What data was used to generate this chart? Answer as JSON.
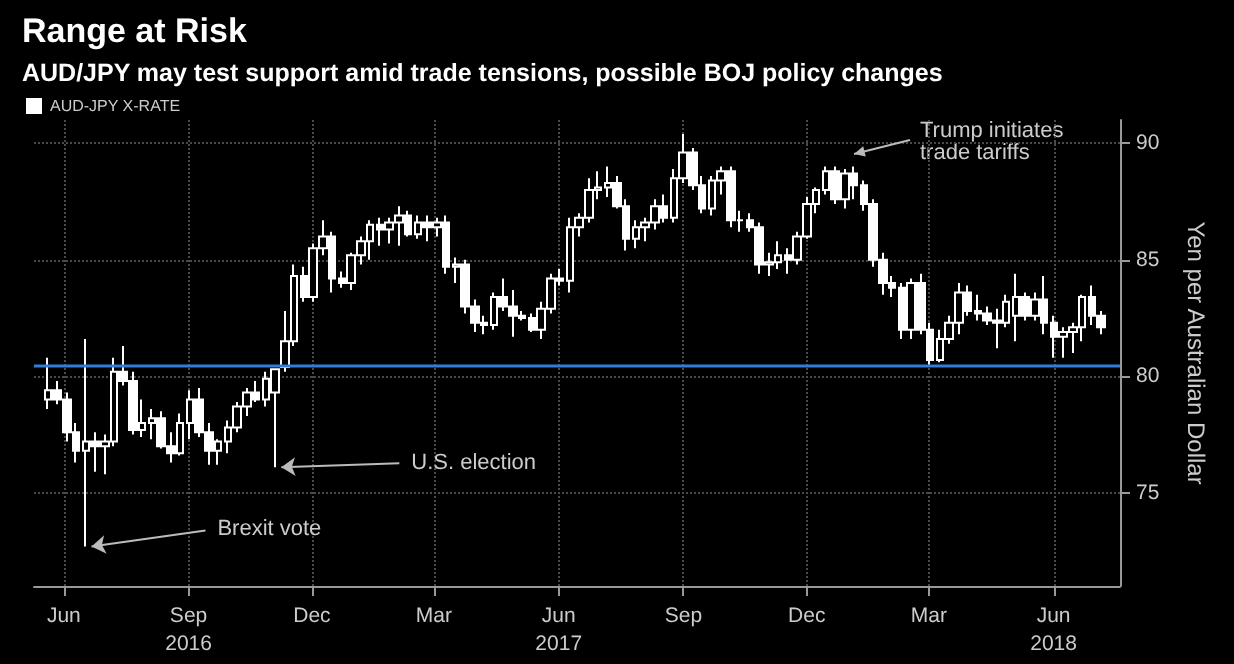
{
  "chart_data": {
    "type": "candlestick",
    "title": "Range at Risk",
    "subtitle": "AUD/JPY may test support amid trade tensions, possible BOJ policy changes",
    "ylabel": "Yen per Australian Dollar",
    "x": [
      "2016-05-20",
      "2016-05-27",
      "2016-06-03",
      "2016-06-10",
      "2016-06-17",
      "2016-06-24",
      "2016-07-01",
      "2016-07-08",
      "2016-07-15",
      "2016-07-22",
      "2016-07-29",
      "2016-08-05",
      "2016-08-12",
      "2016-08-19",
      "2016-08-26",
      "2016-09-02",
      "2016-09-09",
      "2016-09-16",
      "2016-09-23",
      "2016-09-30",
      "2016-10-07",
      "2016-10-14",
      "2016-10-21",
      "2016-10-28",
      "2016-11-04",
      "2016-11-11",
      "2016-11-18",
      "2016-11-25",
      "2016-12-02",
      "2016-12-09",
      "2016-12-16",
      "2016-12-23",
      "2016-12-30",
      "2017-01-06",
      "2017-01-13",
      "2017-01-20",
      "2017-01-27",
      "2017-02-03",
      "2017-02-10",
      "2017-02-17",
      "2017-02-24",
      "2017-03-03",
      "2017-03-10",
      "2017-03-17",
      "2017-03-24",
      "2017-03-31",
      "2017-04-07",
      "2017-04-14",
      "2017-04-21",
      "2017-04-28",
      "2017-05-05",
      "2017-05-12",
      "2017-05-19",
      "2017-05-26",
      "2017-06-02",
      "2017-06-09",
      "2017-06-16",
      "2017-06-23",
      "2017-06-30",
      "2017-07-07",
      "2017-07-14",
      "2017-07-21",
      "2017-07-28",
      "2017-08-04",
      "2017-08-11",
      "2017-08-18",
      "2017-08-25",
      "2017-09-01",
      "2017-09-08",
      "2017-09-15",
      "2017-09-22",
      "2017-09-29",
      "2017-10-06",
      "2017-10-13",
      "2017-10-20",
      "2017-10-27",
      "2017-11-03",
      "2017-11-10",
      "2017-11-17",
      "2017-11-24",
      "2017-12-01",
      "2017-12-08",
      "2017-12-15",
      "2017-12-22",
      "2017-12-29",
      "2018-01-05",
      "2018-01-12",
      "2018-01-19",
      "2018-01-26",
      "2018-02-02",
      "2018-02-09",
      "2018-02-16",
      "2018-02-23",
      "2018-03-02",
      "2018-03-09",
      "2018-03-16",
      "2018-03-23",
      "2018-03-30",
      "2018-04-06",
      "2018-04-13",
      "2018-04-20",
      "2018-04-27",
      "2018-05-04",
      "2018-05-11",
      "2018-05-18",
      "2018-05-25",
      "2018-06-01",
      "2018-06-08",
      "2018-06-15",
      "2018-06-22",
      "2018-06-29",
      "2018-07-06"
    ],
    "series": [
      {
        "name": "AUD-JPY X-RATE",
        "color": "#ffffff",
        "ohlc": [
          [
            79.0,
            80.8,
            78.6,
            79.4
          ],
          [
            79.4,
            79.8,
            78.8,
            79.0
          ],
          [
            79.0,
            79.3,
            77.2,
            77.6
          ],
          [
            77.6,
            78.0,
            76.3,
            76.8
          ],
          [
            76.8,
            81.6,
            72.7,
            77.2
          ],
          [
            77.2,
            77.6,
            75.9,
            77.0
          ],
          [
            77.0,
            77.5,
            75.8,
            77.2
          ],
          [
            77.2,
            80.8,
            77.0,
            80.2
          ],
          [
            80.2,
            81.3,
            79.6,
            79.8
          ],
          [
            79.8,
            80.2,
            77.5,
            77.7
          ],
          [
            77.7,
            79.0,
            77.4,
            78.0
          ],
          [
            78.0,
            78.6,
            77.3,
            78.2
          ],
          [
            78.2,
            78.5,
            76.9,
            77.0
          ],
          [
            77.0,
            77.6,
            76.3,
            76.7
          ],
          [
            76.7,
            78.4,
            76.6,
            78.0
          ],
          [
            78.0,
            79.4,
            77.3,
            79.0
          ],
          [
            79.0,
            79.5,
            77.4,
            77.6
          ],
          [
            77.6,
            78.0,
            76.2,
            76.8
          ],
          [
            76.8,
            77.3,
            76.2,
            77.2
          ],
          [
            77.2,
            78.1,
            76.7,
            77.8
          ],
          [
            77.8,
            78.9,
            77.6,
            78.7
          ],
          [
            78.7,
            79.5,
            78.3,
            79.3
          ],
          [
            79.3,
            79.8,
            78.9,
            79.0
          ],
          [
            79.0,
            80.2,
            78.7,
            79.9
          ],
          [
            79.3,
            80.3,
            76.1,
            80.3
          ],
          [
            80.4,
            82.8,
            80.2,
            81.5
          ],
          [
            81.5,
            84.8,
            81.3,
            84.3
          ],
          [
            84.3,
            84.7,
            83.2,
            83.4
          ],
          [
            83.4,
            85.7,
            83.2,
            85.5
          ],
          [
            85.5,
            86.7,
            85.2,
            86.0
          ],
          [
            86.0,
            86.2,
            83.6,
            84.2
          ],
          [
            84.2,
            84.5,
            83.8,
            84.0
          ],
          [
            84.0,
            85.3,
            83.7,
            85.2
          ],
          [
            85.2,
            86.0,
            84.8,
            85.8
          ],
          [
            85.8,
            86.7,
            85.0,
            86.5
          ],
          [
            86.5,
            86.8,
            85.6,
            86.3
          ],
          [
            86.3,
            86.8,
            85.7,
            86.6
          ],
          [
            86.6,
            87.3,
            85.6,
            86.9
          ],
          [
            86.9,
            87.1,
            86.0,
            86.1
          ],
          [
            86.1,
            86.9,
            85.9,
            86.6
          ],
          [
            86.6,
            86.9,
            85.8,
            86.4
          ],
          [
            86.4,
            86.8,
            86.0,
            86.6
          ],
          [
            86.6,
            86.9,
            84.4,
            84.7
          ],
          [
            84.7,
            85.1,
            84.0,
            84.8
          ],
          [
            84.8,
            85.0,
            82.7,
            83.0
          ],
          [
            83.0,
            83.3,
            81.9,
            82.3
          ],
          [
            82.3,
            82.6,
            81.8,
            82.2
          ],
          [
            82.2,
            83.6,
            82.0,
            83.4
          ],
          [
            83.4,
            84.2,
            82.8,
            83.0
          ],
          [
            83.0,
            83.7,
            81.7,
            82.6
          ],
          [
            82.6,
            82.8,
            82.4,
            82.5
          ],
          [
            82.5,
            82.7,
            81.9,
            82.0
          ],
          [
            82.0,
            83.2,
            81.6,
            82.9
          ],
          [
            82.9,
            84.4,
            82.7,
            84.2
          ],
          [
            84.2,
            84.6,
            83.9,
            84.1
          ],
          [
            84.1,
            86.8,
            83.6,
            86.4
          ],
          [
            86.4,
            87.0,
            86.0,
            86.8
          ],
          [
            86.8,
            88.5,
            86.6,
            88.0
          ],
          [
            88.0,
            88.8,
            87.6,
            88.1
          ],
          [
            88.1,
            89.0,
            87.7,
            88.3
          ],
          [
            88.3,
            88.6,
            87.2,
            87.3
          ],
          [
            87.3,
            87.6,
            85.4,
            85.9
          ],
          [
            85.9,
            86.7,
            85.5,
            86.4
          ],
          [
            86.4,
            86.8,
            85.8,
            86.6
          ],
          [
            86.6,
            87.6,
            86.3,
            87.3
          ],
          [
            87.3,
            87.8,
            86.6,
            86.8
          ],
          [
            86.8,
            88.9,
            86.6,
            88.5
          ],
          [
            88.5,
            90.4,
            88.3,
            89.6
          ],
          [
            89.6,
            89.8,
            88.0,
            88.2
          ],
          [
            88.2,
            88.6,
            87.0,
            87.2
          ],
          [
            87.2,
            88.6,
            86.9,
            88.4
          ],
          [
            88.4,
            89.0,
            87.8,
            88.8
          ],
          [
            88.8,
            89.0,
            86.4,
            86.7
          ],
          [
            86.7,
            87.1,
            86.2,
            86.7
          ],
          [
            86.7,
            87.0,
            86.2,
            86.4
          ],
          [
            86.4,
            86.6,
            84.4,
            84.8
          ],
          [
            84.8,
            85.3,
            84.3,
            84.9
          ],
          [
            84.9,
            85.8,
            84.6,
            85.2
          ],
          [
            85.2,
            85.5,
            84.4,
            85.0
          ],
          [
            85.0,
            86.2,
            84.8,
            86.0
          ],
          [
            86.0,
            87.7,
            85.9,
            87.4
          ],
          [
            87.4,
            88.1,
            87.0,
            88.0
          ],
          [
            88.0,
            89.0,
            87.8,
            88.8
          ],
          [
            88.8,
            89.0,
            87.4,
            87.6
          ],
          [
            87.6,
            88.9,
            87.2,
            88.7
          ],
          [
            88.7,
            89.0,
            87.6,
            88.2
          ],
          [
            88.2,
            88.4,
            87.1,
            87.4
          ],
          [
            87.4,
            87.6,
            84.7,
            85.0
          ],
          [
            85.0,
            85.3,
            83.5,
            84.0
          ],
          [
            84.0,
            84.3,
            83.4,
            83.8
          ],
          [
            83.8,
            84.0,
            81.6,
            82.0
          ],
          [
            82.0,
            84.2,
            81.6,
            84.0
          ],
          [
            84.0,
            84.4,
            81.8,
            82.0
          ],
          [
            82.0,
            82.3,
            80.5,
            80.7
          ],
          [
            80.7,
            82.0,
            80.6,
            81.6
          ],
          [
            81.6,
            82.6,
            81.4,
            82.3
          ],
          [
            82.3,
            84.0,
            81.8,
            83.6
          ],
          [
            83.6,
            83.9,
            82.6,
            82.8
          ],
          [
            82.8,
            83.5,
            82.4,
            82.7
          ],
          [
            82.7,
            83.0,
            82.2,
            82.4
          ],
          [
            82.4,
            82.9,
            81.2,
            82.3
          ],
          [
            82.3,
            83.5,
            82.1,
            83.2
          ],
          [
            82.6,
            84.4,
            81.5,
            83.4
          ],
          [
            83.4,
            83.6,
            82.4,
            82.6
          ],
          [
            82.6,
            83.6,
            82.4,
            83.3
          ],
          [
            83.3,
            84.3,
            81.8,
            82.3
          ],
          [
            82.3,
            82.6,
            80.8,
            81.7
          ],
          [
            81.7,
            82.1,
            80.8,
            81.9
          ],
          [
            81.9,
            82.3,
            81.0,
            82.1
          ],
          [
            82.1,
            83.5,
            81.5,
            83.4
          ],
          [
            83.4,
            83.9,
            82.2,
            82.6
          ],
          [
            82.6,
            82.8,
            81.8,
            82.1
          ]
        ]
      }
    ],
    "xlim": [
      "2016-05-10",
      "2018-07-20"
    ],
    "xticks": [
      {
        "value": "2016-06",
        "label": "Jun"
      },
      {
        "value": "2016-09",
        "label": "Sep\n2016"
      },
      {
        "value": "2016-12",
        "label": "Dec"
      },
      {
        "value": "2017-03",
        "label": "Mar"
      },
      {
        "value": "2017-06",
        "label": "Jun\n2017"
      },
      {
        "value": "2017-09",
        "label": "Sep"
      },
      {
        "value": "2017-12",
        "label": "Dec"
      },
      {
        "value": "2018-03",
        "label": "Mar"
      },
      {
        "value": "2018-06",
        "label": "Jun\n2018"
      }
    ],
    "ylim": [
      71,
      91
    ],
    "yticks": [
      75,
      80,
      85,
      90
    ],
    "ref_lines": [
      {
        "axis": "y",
        "value": 80.5,
        "color": "#2f7fd6"
      }
    ],
    "annotations": [
      {
        "text": "Brexit vote",
        "x": "2016-06-17",
        "y": 72.7
      },
      {
        "text": "U.S. election",
        "x": "2016-11-04",
        "y": 76.1
      },
      "Trump initiates trade tariffs"
    ],
    "grid": true,
    "legend": "top left"
  }
}
